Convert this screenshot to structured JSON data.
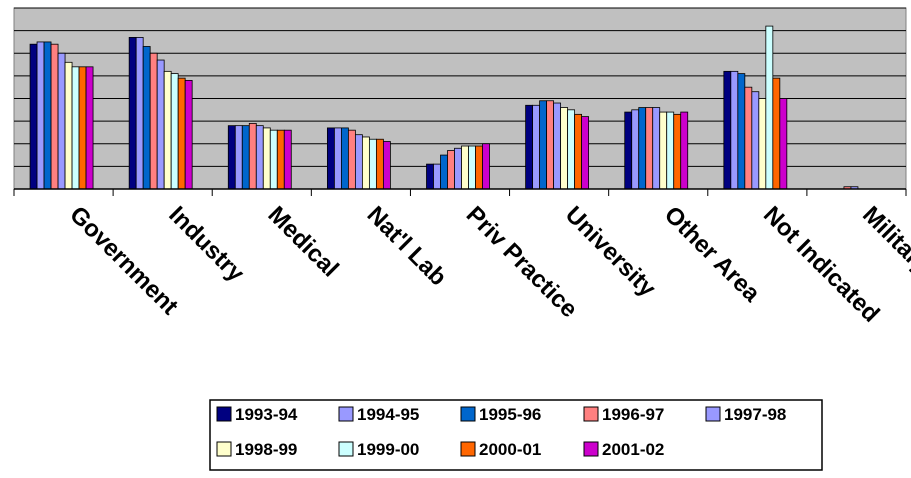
{
  "chart_data": {
    "type": "bar",
    "title": "",
    "xlabel": "",
    "ylabel": "",
    "ylim": [
      0,
      8
    ],
    "grid": true,
    "legend_position": "bottom",
    "categories": [
      "Government",
      "Industry",
      "Medical",
      "Nat'l Lab",
      "Priv Practice",
      "University",
      "Other Area",
      "Not Indicated",
      "Military"
    ],
    "series": [
      {
        "name": "1993-94",
        "color": "#000080",
        "values": [
          6.4,
          6.7,
          2.8,
          2.7,
          1.1,
          3.7,
          3.4,
          5.2,
          0
        ]
      },
      {
        "name": "1994-95",
        "color": "#9999ff",
        "values": [
          6.5,
          6.7,
          2.8,
          2.7,
          1.1,
          3.7,
          3.5,
          5.2,
          0
        ]
      },
      {
        "name": "1995-96",
        "color": "#0066cc",
        "values": [
          6.5,
          6.3,
          2.8,
          2.7,
          1.5,
          3.9,
          3.6,
          5.1,
          0
        ]
      },
      {
        "name": "1996-97",
        "color": "#ff8080",
        "values": [
          6.4,
          6.0,
          2.9,
          2.6,
          1.7,
          3.9,
          3.6,
          4.5,
          0.1
        ]
      },
      {
        "name": "1997-98",
        "color": "#9999ff",
        "values": [
          6.0,
          5.7,
          2.8,
          2.4,
          1.8,
          3.8,
          3.6,
          4.3,
          0.1
        ]
      },
      {
        "name": "1998-99",
        "color": "#ffffcc",
        "values": [
          5.6,
          5.2,
          2.7,
          2.3,
          1.9,
          3.6,
          3.4,
          4.0,
          0
        ]
      },
      {
        "name": "1999-00",
        "color": "#ccffff",
        "values": [
          5.4,
          5.1,
          2.6,
          2.2,
          1.9,
          3.5,
          3.4,
          7.2,
          0
        ]
      },
      {
        "name": "2000-01",
        "color": "#ff6600",
        "values": [
          5.4,
          4.9,
          2.6,
          2.2,
          1.9,
          3.3,
          3.3,
          4.9,
          0
        ]
      },
      {
        "name": "2001-02",
        "color": "#cc00cc",
        "values": [
          5.4,
          4.8,
          2.6,
          2.1,
          2.0,
          3.2,
          3.4,
          4.0,
          0
        ]
      }
    ]
  }
}
